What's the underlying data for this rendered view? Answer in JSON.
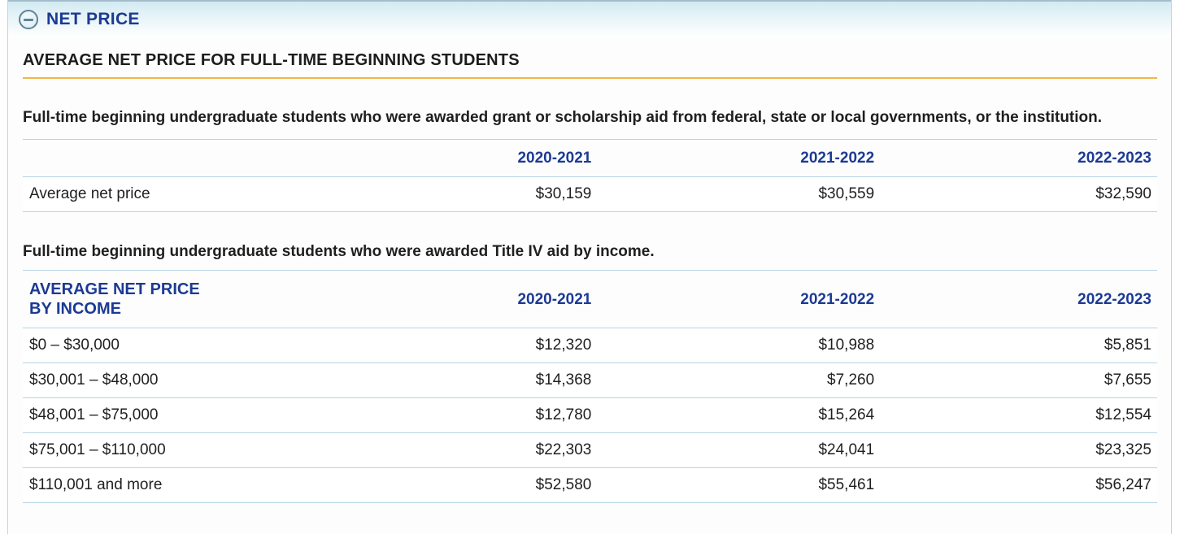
{
  "panel": {
    "title": "NET PRICE",
    "collapse_icon": "minus-circle-icon"
  },
  "page_heading": "AVERAGE NET PRICE FOR FULL-TIME BEGINNING STUDENTS",
  "section1": {
    "description": "Full-time beginning undergraduate students who were awarded grant or scholarship aid from federal, state or local governments, or the institution.",
    "table": {
      "columns": [
        "2020-2021",
        "2021-2022",
        "2022-2023"
      ],
      "row_label": "Average net price",
      "values": [
        "$30,159",
        "$30,559",
        "$32,590"
      ]
    }
  },
  "section2": {
    "description": "Full-time beginning undergraduate students who were awarded Title IV aid by income.",
    "table": {
      "header_label": "AVERAGE NET PRICE BY INCOME",
      "columns": [
        "2020-2021",
        "2021-2022",
        "2022-2023"
      ],
      "rows": [
        {
          "label": "$0 – $30,000",
          "values": [
            "$12,320",
            "$10,988",
            "$5,851"
          ]
        },
        {
          "label": "$30,001 – $48,000",
          "values": [
            "$14,368",
            "$7,260",
            "$7,655"
          ]
        },
        {
          "label": "$48,001 – $75,000",
          "values": [
            "$12,780",
            "$15,264",
            "$12,554"
          ]
        },
        {
          "label": "$75,001 – $110,000",
          "values": [
            "$22,303",
            "$24,041",
            "$23,325"
          ]
        },
        {
          "label": "$110,001 and more",
          "values": [
            "$52,580",
            "$55,461",
            "$56,247"
          ]
        }
      ]
    }
  },
  "colors": {
    "accent_navy": "#1c3a93",
    "gold_rule": "#f3b64b",
    "table_border_blue": "#b5d4e3",
    "panel_border_blue": "#bcd7e2",
    "header_gradient_top": "#d2eaf2",
    "icon_steel_blue": "#5e8396",
    "body_text": "#1f1f1f"
  }
}
